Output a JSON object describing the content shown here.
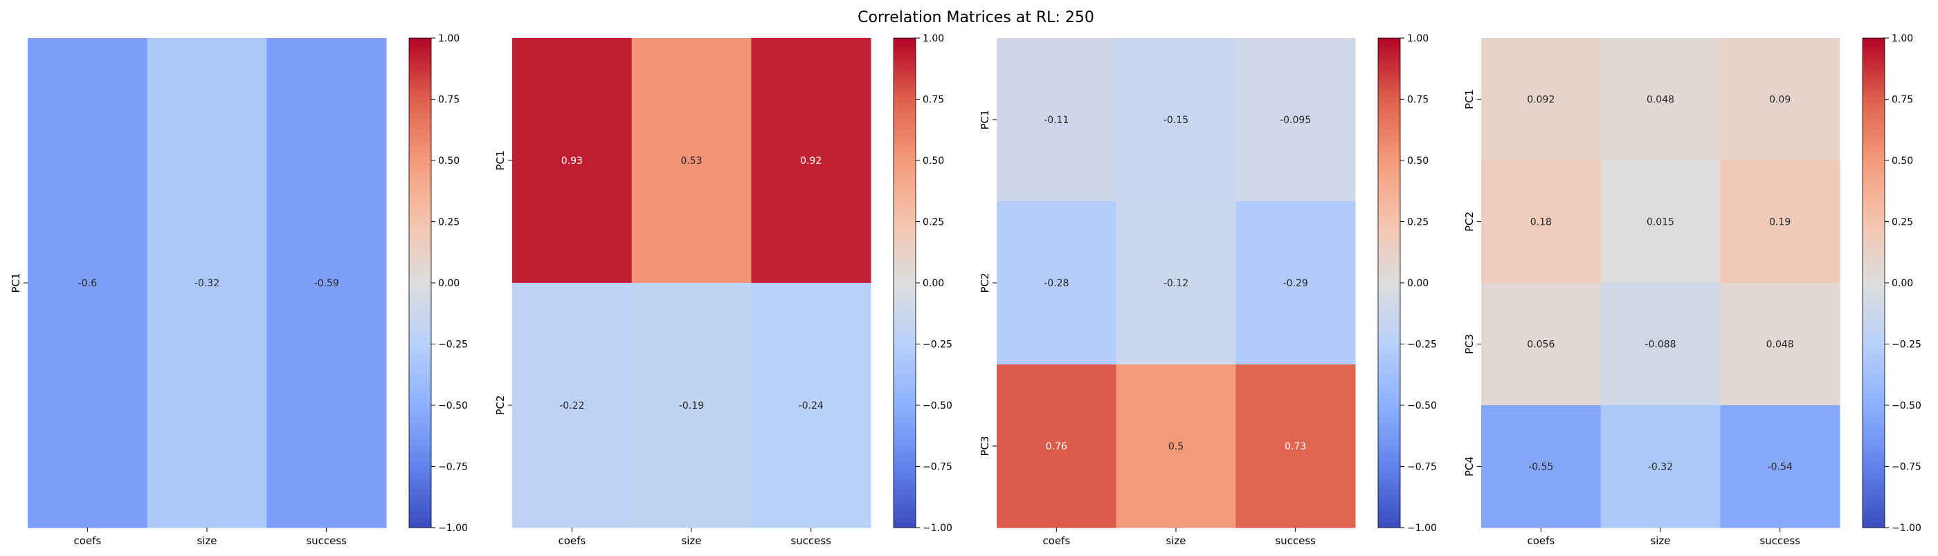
{
  "title": "Correlation Matrices at RL: 250",
  "colorbar": {
    "vmin": -1.0,
    "vmax": 1.0,
    "tick_labels": [
      "1.00",
      "0.75",
      "0.50",
      "0.25",
      "0.00",
      "−0.25",
      "−0.50",
      "−0.75",
      "−1.00"
    ],
    "tick_values": [
      1.0,
      0.75,
      0.5,
      0.25,
      0.0,
      -0.25,
      -0.5,
      -0.75,
      -1.0
    ],
    "colormap": "coolwarm"
  },
  "chart_data": [
    {
      "type": "heatmap",
      "columns": [
        "coefs",
        "size",
        "success"
      ],
      "rows": [
        "PC1"
      ],
      "values": [
        [
          -0.6,
          -0.32,
          -0.59
        ]
      ],
      "value_labels": [
        [
          "-0.6",
          "-0.32",
          "-0.59"
        ]
      ],
      "zlim": [
        -1,
        1
      ]
    },
    {
      "type": "heatmap",
      "columns": [
        "coefs",
        "size",
        "success"
      ],
      "rows": [
        "PC1",
        "PC2"
      ],
      "values": [
        [
          0.93,
          0.53,
          0.92
        ],
        [
          -0.22,
          -0.19,
          -0.24
        ]
      ],
      "value_labels": [
        [
          "0.93",
          "0.53",
          "0.92"
        ],
        [
          "-0.22",
          "-0.19",
          "-0.24"
        ]
      ],
      "zlim": [
        -1,
        1
      ]
    },
    {
      "type": "heatmap",
      "columns": [
        "coefs",
        "size",
        "success"
      ],
      "rows": [
        "PC1",
        "PC2",
        "PC3"
      ],
      "values": [
        [
          -0.11,
          -0.15,
          -0.095
        ],
        [
          -0.28,
          -0.12,
          -0.29
        ],
        [
          0.76,
          0.5,
          0.73
        ]
      ],
      "value_labels": [
        [
          "-0.11",
          "-0.15",
          "-0.095"
        ],
        [
          "-0.28",
          "-0.12",
          "-0.29"
        ],
        [
          "0.76",
          "0.5",
          "0.73"
        ]
      ],
      "zlim": [
        -1,
        1
      ]
    },
    {
      "type": "heatmap",
      "columns": [
        "coefs",
        "size",
        "success"
      ],
      "rows": [
        "PC1",
        "PC2",
        "PC3",
        "PC4"
      ],
      "values": [
        [
          0.092,
          0.048,
          0.09
        ],
        [
          0.18,
          0.015,
          0.19
        ],
        [
          0.056,
          -0.088,
          0.048
        ],
        [
          -0.55,
          -0.32,
          -0.54
        ]
      ],
      "value_labels": [
        [
          "0.092",
          "0.048",
          "0.09"
        ],
        [
          "0.18",
          "0.015",
          "0.19"
        ],
        [
          "0.056",
          "-0.088",
          "0.048"
        ],
        [
          "-0.55",
          "-0.32",
          "-0.54"
        ]
      ],
      "zlim": [
        -1,
        1
      ]
    }
  ]
}
